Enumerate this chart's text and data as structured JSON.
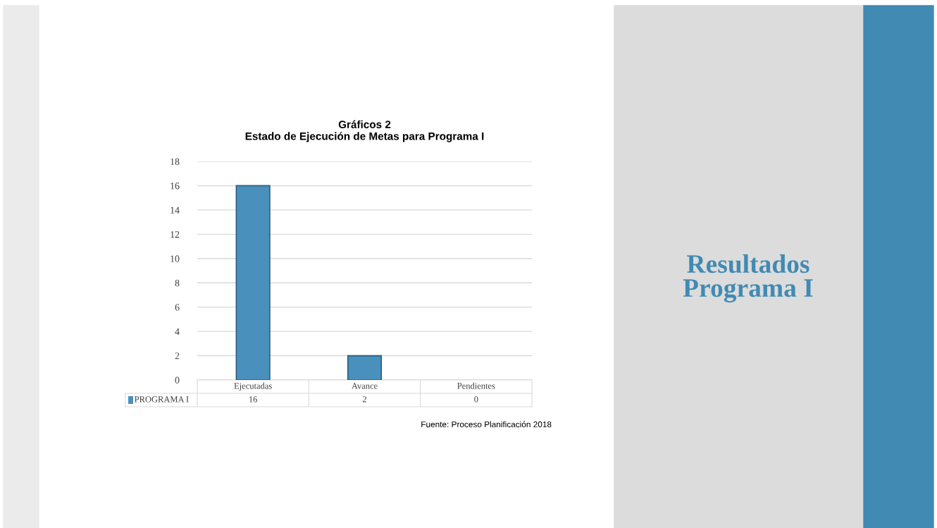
{
  "chart_data": {
    "type": "bar",
    "title": "Gráficos 2\nEstado de Ejecución de Metas para Programa I",
    "categories": [
      "Ejecutadas",
      "Avance",
      "Pendientes"
    ],
    "series": [
      {
        "name": "PROGRAMA I",
        "color": "#4a90bc",
        "values": [
          16,
          2,
          0
        ]
      }
    ],
    "ylim": [
      0,
      18
    ],
    "yticks": [
      0,
      2,
      4,
      6,
      8,
      10,
      12,
      14,
      16,
      18
    ],
    "grid": "y",
    "data_labels": true,
    "annotations": [
      "Fuente: Proceso Planificación 2018",
      "Resultados\nPrograma I"
    ]
  }
}
